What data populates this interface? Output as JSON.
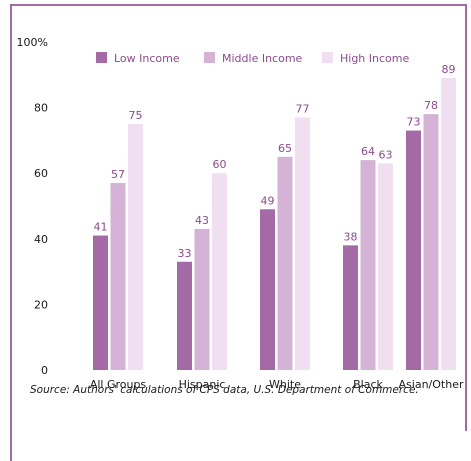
{
  "chart_data": {
    "type": "bar",
    "categories": [
      "All Groups",
      "Hispanic",
      "White",
      "Black",
      "Asian/Other"
    ],
    "series": [
      {
        "name": "Low Income",
        "values": [
          41,
          33,
          49,
          38,
          73
        ],
        "color": "#a46aa6"
      },
      {
        "name": "Middle Income",
        "values": [
          57,
          43,
          65,
          64,
          78
        ],
        "color": "#d4b3d6"
      },
      {
        "name": "High Income",
        "values": [
          75,
          60,
          77,
          63,
          89
        ],
        "color": "#efdff0"
      }
    ],
    "yticks": [
      "0",
      "20",
      "40",
      "60",
      "80",
      "100%"
    ],
    "ylim": [
      0,
      100
    ],
    "grid": false,
    "legend_position": "top",
    "source": "Source:  Authors' calculations of CPS data, U.S. Department of Commerce."
  }
}
